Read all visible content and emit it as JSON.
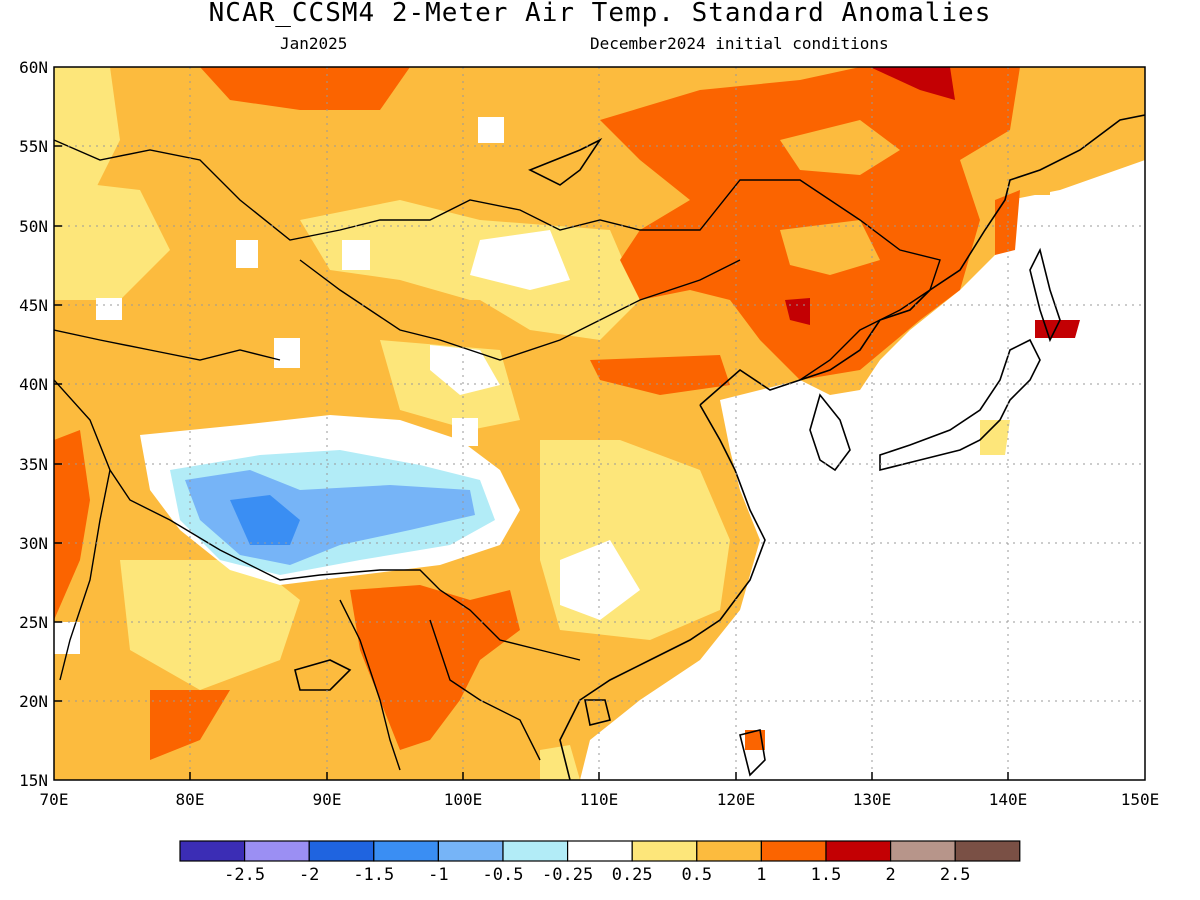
{
  "title": "NCAR_CCSM4 2-Meter Air Temp. Standard Anomalies",
  "subtitle_left": "Jan2025",
  "subtitle_right": "December2024 initial conditions",
  "map": {
    "lon_range": [
      70,
      150
    ],
    "lat_range": [
      15,
      60
    ],
    "lat_ticks": [
      "60N",
      "55N",
      "50N",
      "45N",
      "40N",
      "35N",
      "30N",
      "25N",
      "20N",
      "15N"
    ],
    "lon_ticks": [
      "70E",
      "80E",
      "90E",
      "100E",
      "110E",
      "120E",
      "130E",
      "140E",
      "150E"
    ],
    "grid": "dotted",
    "ocean_masked": true
  },
  "colorbar": {
    "colors": [
      "#3b2db5",
      "#9b8ff3",
      "#1f64e0",
      "#3a8ef3",
      "#76b4f7",
      "#b2ecf7",
      "#ffffff",
      "#fde67a",
      "#fcbb3e",
      "#fb6400",
      "#c30003",
      "#b7958a",
      "#7a5045"
    ],
    "labels": [
      "-2.5",
      "-2",
      "-1.5",
      "-1",
      "-0.5",
      "-0.25",
      "0.25",
      "0.5",
      "1",
      "1.5",
      "2",
      "2.5"
    ]
  }
}
